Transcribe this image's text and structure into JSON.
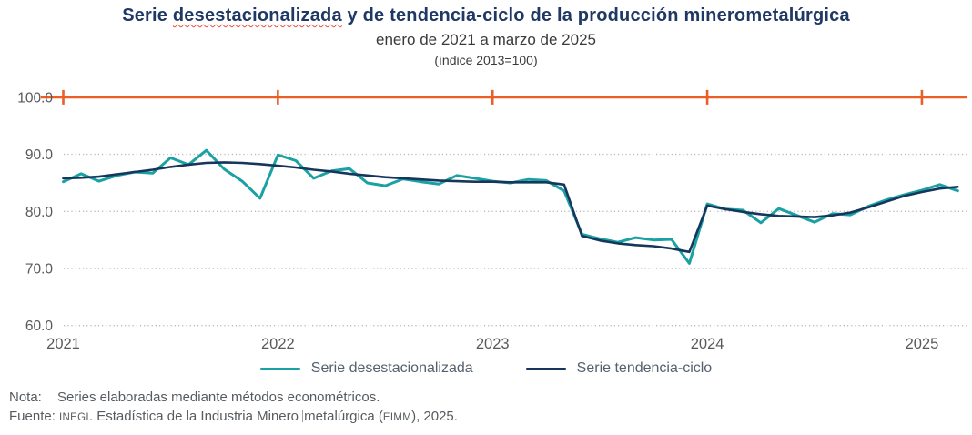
{
  "header": {
    "title_part1": "Serie ",
    "title_misspelled_word": "desestacionalizada",
    "title_part2": " y de tendencia-ciclo de la producción minerometalúrgica",
    "subtitle": "enero de 2021 a marzo de 2025",
    "index_note": "(índice 2013=100)"
  },
  "legend": {
    "items": [
      {
        "label": "Serie desestacionalizada",
        "color": "#19a1a3"
      },
      {
        "label": "Serie tendencia-ciclo",
        "color": "#16365c"
      }
    ]
  },
  "footnotes": {
    "nota_label": "Nota:",
    "nota_text": "Series elaboradas mediante métodos econométricos.",
    "fuente_label": "Fuente:",
    "fuente_inst": "INEGI",
    "fuente_sep": ". Estadística de la Industria Minero ",
    "fuente_rest": "metalúrgica (",
    "fuente_abbr": "EIMM",
    "fuente_end": "), 2025."
  },
  "colors": {
    "title_navy": "#1f3864",
    "seasonally_adjusted_teal": "#19a1a3",
    "trend_cycle_navy": "#16365c",
    "top_rule_orange": "#ea5e27",
    "gridline_gray": "#b9b9b9",
    "axis_label_gray": "#58595b"
  },
  "chart_data": {
    "type": "line",
    "title": "Serie desestacionalizada y de tendencia-ciclo de la producción minerometalúrgica",
    "subtitle": "enero de 2021 a marzo de 2025",
    "index_base_note": "(índice 2013=100)",
    "x_unit": "month",
    "x_start": "2021-01",
    "x_end": "2025-03",
    "x_tick_labels": [
      "2021",
      "2022",
      "2023",
      "2024",
      "2025"
    ],
    "x_tick_month_index": [
      0,
      12,
      24,
      36,
      48
    ],
    "y_ticks": [
      100.0,
      90.0,
      80.0,
      70.0,
      60.0
    ],
    "ylim": [
      60,
      100
    ],
    "grid": "dotted-horizontal",
    "top_rule_value": 100.0,
    "legend_position": "bottom-center",
    "series": [
      {
        "name": "Serie desestacionalizada",
        "color": "#19a1a3",
        "width": 3,
        "values": [
          85.2,
          86.6,
          85.3,
          86.3,
          86.9,
          86.7,
          89.4,
          88.2,
          90.7,
          87.4,
          85.3,
          82.3,
          89.9,
          88.9,
          85.8,
          87.1,
          87.5,
          85.0,
          84.5,
          85.7,
          85.2,
          84.8,
          86.3,
          85.8,
          85.3,
          85.0,
          85.6,
          85.4,
          83.6,
          76.0,
          75.2,
          74.6,
          75.4,
          75.0,
          75.1,
          70.9,
          81.3,
          80.4,
          80.2,
          78.0,
          80.5,
          79.3,
          78.1,
          79.6,
          79.4,
          80.9,
          82.0,
          82.9,
          83.7,
          84.7,
          83.6
        ]
      },
      {
        "name": "Serie tendencia-ciclo",
        "color": "#16365c",
        "width": 2.6,
        "values": [
          85.8,
          85.9,
          86.1,
          86.5,
          86.9,
          87.3,
          87.8,
          88.2,
          88.5,
          88.6,
          88.5,
          88.3,
          88.0,
          87.7,
          87.3,
          87.0,
          86.6,
          86.3,
          86.0,
          85.8,
          85.6,
          85.4,
          85.3,
          85.2,
          85.2,
          85.1,
          85.1,
          85.1,
          84.7,
          75.7,
          74.9,
          74.4,
          74.1,
          73.9,
          73.5,
          72.9,
          81.0,
          80.4,
          79.9,
          79.5,
          79.2,
          79.1,
          79.0,
          79.3,
          79.8,
          80.7,
          81.7,
          82.7,
          83.4,
          84.0,
          84.3
        ]
      }
    ]
  }
}
